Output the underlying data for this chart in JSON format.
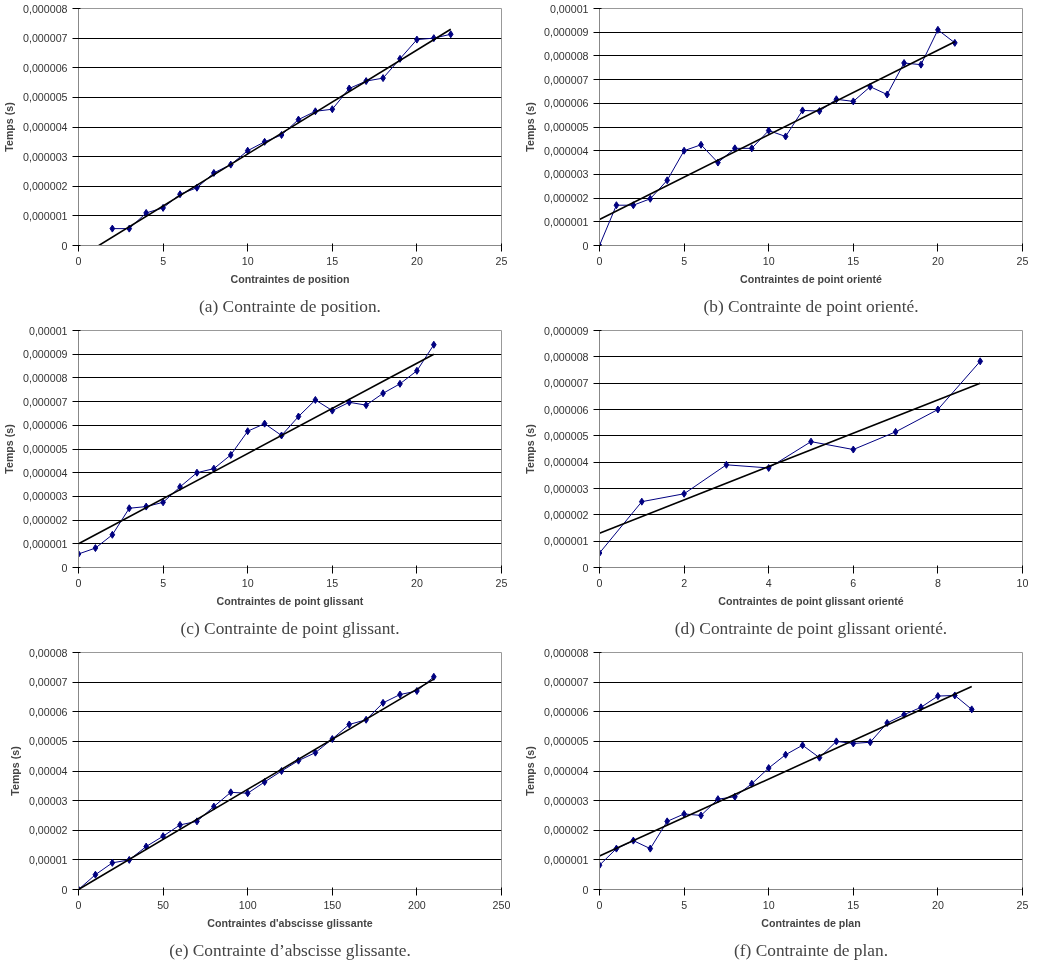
{
  "chart_data": [
    {
      "type": "line",
      "xlabel": "Contraintes de position",
      "ylabel": "Temps (s)",
      "annotations": [
        "(a) Contrainte de position."
      ],
      "grid": "y",
      "marker": "diamond",
      "line_style": "solid",
      "xlim": [
        0,
        25
      ],
      "xticks": [
        0,
        5,
        10,
        15,
        20,
        25
      ],
      "ylim": [
        0,
        8e-06
      ],
      "yticks": [
        0,
        {
          "value": 1e-06,
          "label": "0,000001"
        },
        {
          "value": 2e-06,
          "label": "0,000002"
        },
        {
          "value": 3e-06,
          "label": "0,000003"
        },
        {
          "value": 4e-06,
          "label": "0,000004"
        },
        {
          "value": 5e-06,
          "label": "0,000005"
        },
        {
          "value": 6e-06,
          "label": "0,000006"
        },
        {
          "value": 7e-06,
          "label": "0,000007"
        },
        {
          "value": 8e-06,
          "label": "0,000008"
        }
      ],
      "series": [
        {
          "color": "#000080",
          "x": [
            2,
            3,
            4,
            5,
            6,
            7,
            8,
            9,
            10,
            11,
            12,
            13,
            14,
            15,
            16,
            17,
            18,
            19,
            20,
            21,
            22
          ],
          "values": [
            5.7e-07,
            5.7e-07,
            1.1e-06,
            1.27e-06,
            1.73e-06,
            1.95e-06,
            2.45e-06,
            2.73e-06,
            3.2e-06,
            3.5e-06,
            3.73e-06,
            4.25e-06,
            4.53e-06,
            4.6e-06,
            5.3e-06,
            5.55e-06,
            5.65e-06,
            6.3e-06,
            6.95e-06,
            7e-06,
            7.13e-06
          ]
        },
        {
          "color": "#000000",
          "type": "line",
          "marker": "none",
          "x": [
            1.2,
            22
          ],
          "values": [
            0,
            7.3e-06
          ]
        }
      ]
    },
    {
      "type": "line",
      "xlabel": "Contraintes de point orienté",
      "ylabel": "Temps (s)",
      "annotations": [
        "(b) Contrainte de point orienté."
      ],
      "grid": "y",
      "marker": "diamond",
      "line_style": "solid",
      "xlim": [
        0,
        25
      ],
      "xticks": [
        0,
        5,
        10,
        15,
        20,
        25
      ],
      "ylim": [
        0,
        1e-05
      ],
      "yticks": [
        0,
        {
          "value": 1e-06,
          "label": "0,000001"
        },
        {
          "value": 2e-06,
          "label": "0,000002"
        },
        {
          "value": 3e-06,
          "label": "0,000003"
        },
        {
          "value": 4e-06,
          "label": "0,000004"
        },
        {
          "value": 5e-06,
          "label": "0,000005"
        },
        {
          "value": 6e-06,
          "label": "0,000006"
        },
        {
          "value": 7e-06,
          "label": "0,000007"
        },
        {
          "value": 8e-06,
          "label": "0,000008"
        },
        {
          "value": 9e-06,
          "label": "0,000009"
        },
        {
          "value": 1e-05,
          "label": "0,00001"
        }
      ],
      "series": [
        {
          "color": "#000080",
          "x": [
            0,
            1,
            2,
            3,
            4,
            5,
            6,
            7,
            8,
            9,
            10,
            11,
            12,
            13,
            14,
            15,
            16,
            17,
            18,
            19,
            20,
            21
          ],
          "values": [
            0,
            1.7e-06,
            1.7e-06,
            1.97e-06,
            2.75e-06,
            4e-06,
            4.25e-06,
            3.5e-06,
            4.1e-06,
            4.1e-06,
            4.85e-06,
            4.6e-06,
            5.7e-06,
            5.67e-06,
            6.17e-06,
            6.08e-06,
            6.7e-06,
            6.37e-06,
            7.7e-06,
            7.63e-06,
            9.1e-06,
            8.55e-06
          ]
        },
        {
          "color": "#000000",
          "type": "line",
          "marker": "none",
          "x": [
            0,
            21
          ],
          "values": [
            1.1e-06,
            8.6e-06
          ]
        }
      ]
    },
    {
      "type": "line",
      "xlabel": "Contraintes de point glissant",
      "ylabel": "Temps (s)",
      "annotations": [
        "(c) Contrainte de point glissant."
      ],
      "grid": "y",
      "marker": "diamond",
      "line_style": "solid",
      "xlim": [
        0,
        25
      ],
      "xticks": [
        0,
        5,
        10,
        15,
        20,
        25
      ],
      "ylim": [
        0,
        1e-05
      ],
      "yticks": [
        0,
        {
          "value": 1e-06,
          "label": "0,000001"
        },
        {
          "value": 2e-06,
          "label": "0,000002"
        },
        {
          "value": 3e-06,
          "label": "0,000003"
        },
        {
          "value": 4e-06,
          "label": "0,000004"
        },
        {
          "value": 5e-06,
          "label": "0,000005"
        },
        {
          "value": 6e-06,
          "label": "0,000006"
        },
        {
          "value": 7e-06,
          "label": "0,000007"
        },
        {
          "value": 8e-06,
          "label": "0,000008"
        },
        {
          "value": 9e-06,
          "label": "0,000009"
        },
        {
          "value": 1e-05,
          "label": "0,00001"
        }
      ],
      "series": [
        {
          "color": "#000080",
          "x": [
            0,
            1,
            2,
            3,
            4,
            5,
            6,
            7,
            8,
            9,
            10,
            11,
            12,
            13,
            14,
            15,
            16,
            17,
            18,
            19,
            20,
            21
          ],
          "values": [
            5.7e-07,
            8.2e-07,
            1.38e-06,
            2.5e-06,
            2.57e-06,
            2.75e-06,
            3.4e-06,
            4e-06,
            4.17e-06,
            4.75e-06,
            5.75e-06,
            6.07e-06,
            5.57e-06,
            6.37e-06,
            7.07e-06,
            6.62e-06,
            6.97e-06,
            6.85e-06,
            7.35e-06,
            7.75e-06,
            8.3e-06,
            9.4e-06
          ]
        },
        {
          "color": "#000000",
          "type": "line",
          "marker": "none",
          "x": [
            0,
            21
          ],
          "values": [
            1e-06,
            9e-06
          ]
        }
      ]
    },
    {
      "type": "line",
      "xlabel": "Contraintes de point glissant orienté",
      "ylabel": "Temps (s)",
      "annotations": [
        "(d) Contrainte de point glissant orienté."
      ],
      "grid": "y",
      "marker": "diamond",
      "line_style": "solid",
      "xlim": [
        0,
        10
      ],
      "xticks": [
        0,
        2,
        4,
        6,
        8,
        10
      ],
      "ylim": [
        0,
        9e-06
      ],
      "yticks": [
        0,
        {
          "value": 1e-06,
          "label": "0,000001"
        },
        {
          "value": 2e-06,
          "label": "0,000002"
        },
        {
          "value": 3e-06,
          "label": "0,000003"
        },
        {
          "value": 4e-06,
          "label": "0,000004"
        },
        {
          "value": 5e-06,
          "label": "0,000005"
        },
        {
          "value": 6e-06,
          "label": "0,000006"
        },
        {
          "value": 7e-06,
          "label": "0,000007"
        },
        {
          "value": 8e-06,
          "label": "0,000008"
        },
        {
          "value": 9e-06,
          "label": "0,000009"
        }
      ],
      "series": [
        {
          "color": "#000080",
          "x": [
            0,
            1,
            2,
            3,
            4,
            5,
            6,
            7,
            8,
            9
          ],
          "values": [
            5.5e-07,
            2.5e-06,
            2.8e-06,
            3.9e-06,
            3.78e-06,
            4.78e-06,
            4.48e-06,
            5.15e-06,
            6e-06,
            7.83e-06
          ]
        },
        {
          "color": "#000000",
          "type": "line",
          "marker": "none",
          "x": [
            0,
            9
          ],
          "values": [
            1.3e-06,
            7e-06
          ]
        }
      ]
    },
    {
      "type": "line",
      "xlabel": "Contraintes d'abscisse glissante",
      "ylabel": "Temps (s)",
      "annotations": [
        "(e) Contrainte d’abscisse glissante."
      ],
      "grid": "y",
      "marker": "diamond",
      "line_style": "solid",
      "xlim": [
        0,
        250
      ],
      "xticks": [
        0,
        50,
        100,
        150,
        200,
        250
      ],
      "ylim": [
        0,
        8e-05
      ],
      "yticks": [
        0,
        {
          "value": 1e-05,
          "label": "0,00001"
        },
        {
          "value": 2e-05,
          "label": "0,00002"
        },
        {
          "value": 3e-05,
          "label": "0,00003"
        },
        {
          "value": 4e-05,
          "label": "0,00004"
        },
        {
          "value": 5e-05,
          "label": "0,00005"
        },
        {
          "value": 6e-05,
          "label": "0,00006"
        },
        {
          "value": 7e-05,
          "label": "0,00007"
        },
        {
          "value": 8e-05,
          "label": "0,00008"
        }
      ],
      "series": [
        {
          "color": "#000080",
          "x": [
            0,
            10,
            20,
            30,
            40,
            50,
            60,
            70,
            80,
            90,
            100,
            110,
            120,
            130,
            140,
            150,
            160,
            170,
            180,
            190,
            200,
            210
          ],
          "values": [
            0,
            5e-06,
            9e-06,
            1e-05,
            1.45e-05,
            1.8e-05,
            2.18e-05,
            2.3e-05,
            2.8e-05,
            3.28e-05,
            3.25e-05,
            3.63e-05,
            4e-05,
            4.35e-05,
            4.62e-05,
            5.08e-05,
            5.57e-05,
            5.73e-05,
            6.3e-05,
            6.58e-05,
            6.7e-05,
            7.18e-05
          ]
        },
        {
          "color": "#000000",
          "type": "line",
          "marker": "none",
          "x": [
            0,
            210
          ],
          "values": [
            0,
            7.1e-05
          ]
        }
      ]
    },
    {
      "type": "line",
      "xlabel": "Contraintes de plan",
      "ylabel": "Temps (s)",
      "annotations": [
        "(f) Contrainte de plan."
      ],
      "grid": "y",
      "marker": "diamond",
      "line_style": "solid",
      "xlim": [
        0,
        25
      ],
      "xticks": [
        0,
        5,
        10,
        15,
        20,
        25
      ],
      "ylim": [
        0,
        8e-06
      ],
      "yticks": [
        0,
        {
          "value": 1e-06,
          "label": "0,000001"
        },
        {
          "value": 2e-06,
          "label": "0,000002"
        },
        {
          "value": 3e-06,
          "label": "0,000003"
        },
        {
          "value": 4e-06,
          "label": "0,000004"
        },
        {
          "value": 5e-06,
          "label": "0,000005"
        },
        {
          "value": 6e-06,
          "label": "0,000006"
        },
        {
          "value": 7e-06,
          "label": "0,000007"
        },
        {
          "value": 8e-06,
          "label": "0,000008"
        }
      ],
      "series": [
        {
          "color": "#000080",
          "x": [
            0,
            1,
            2,
            3,
            4,
            5,
            6,
            7,
            8,
            9,
            10,
            11,
            12,
            13,
            14,
            15,
            16,
            17,
            18,
            19,
            20,
            21,
            22
          ],
          "values": [
            8.2e-07,
            1.38e-06,
            1.65e-06,
            1.38e-06,
            2.3e-06,
            2.55e-06,
            2.5e-06,
            3.05e-06,
            3.13e-06,
            3.57e-06,
            4.1e-06,
            4.55e-06,
            4.87e-06,
            4.45e-06,
            5e-06,
            4.93e-06,
            4.97e-06,
            5.62e-06,
            5.9e-06,
            6.15e-06,
            6.53e-06,
            6.55e-06,
            6.08e-06
          ]
        },
        {
          "color": "#000000",
          "type": "line",
          "marker": "none",
          "x": [
            0,
            22
          ],
          "values": [
            1.13e-06,
            6.85e-06
          ]
        }
      ]
    }
  ]
}
